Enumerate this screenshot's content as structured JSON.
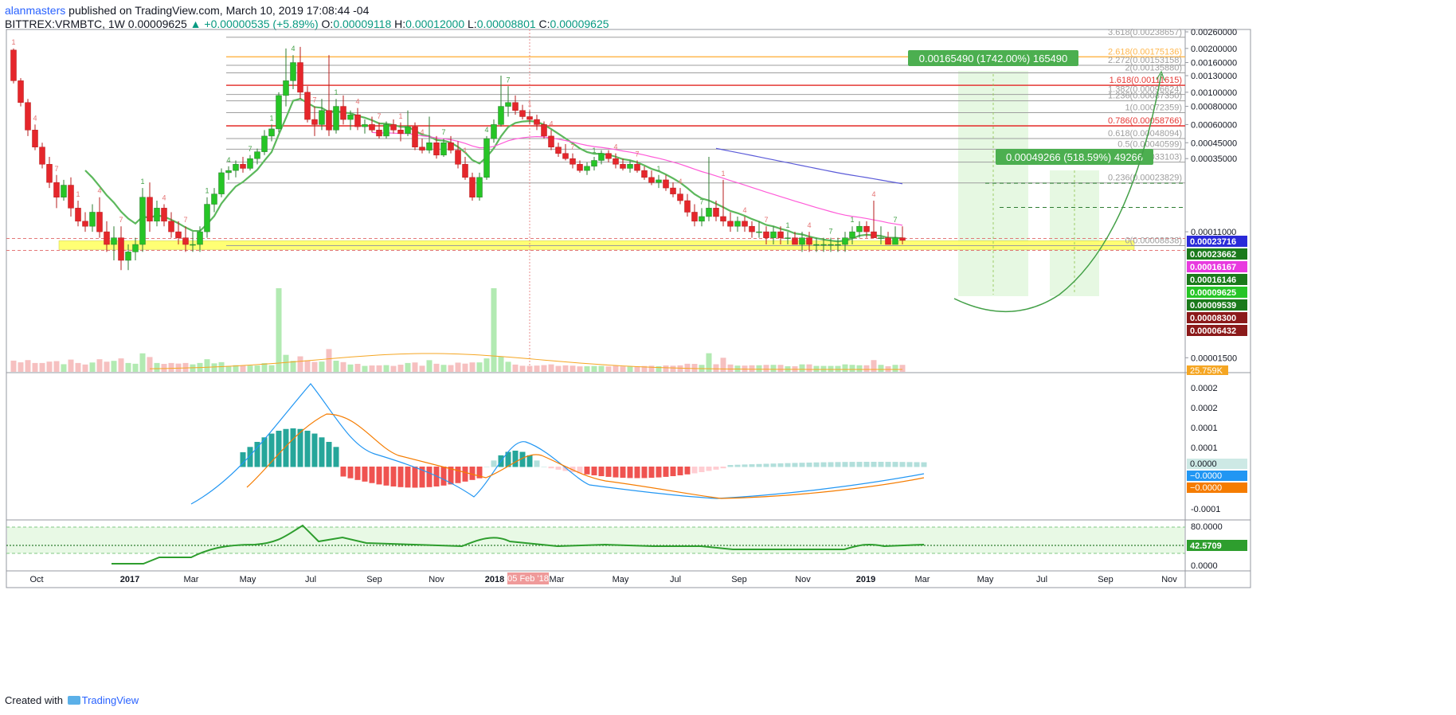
{
  "header": {
    "author": "alanmasters",
    "published_text": "published on TradingView.com, March 10, 2019 17:08:44 -04",
    "symbol": "BITTREX:VRMBTC, 1W",
    "last": "0.00009625",
    "change_arrow": "▲",
    "change": "+0.00000535 (+5.89%)",
    "o_label": "O:",
    "o": "0.00009118",
    "h_label": "H:",
    "h": "0.00012000",
    "l_label": "L:",
    "l": "0.00008801",
    "c_label": "C:",
    "c": "0.00009625"
  },
  "footer": {
    "created": "Created with",
    "brand": "TradingView"
  },
  "colors": {
    "up": "#26c526",
    "down": "#e5262b",
    "ema": "#5cb85c",
    "ma_pink": "#ff5bd8",
    "ma_blue": "#5b5bd8",
    "fib_red": "#e53935",
    "fib_orange": "#ffb74d",
    "fib_grey": "#9e9e9e",
    "zone": "#ffff66"
  },
  "chart_data": [
    {
      "type": "candlestick",
      "scale": "log",
      "x_ticks": [
        "Oct",
        "2017",
        "Mar",
        "May",
        "Jul",
        "Sep",
        "Nov",
        "2018",
        "Mar",
        "May",
        "Jul",
        "Sep",
        "Nov",
        "2019",
        "Mar",
        "May",
        "Jul",
        "Sep",
        "Nov"
      ],
      "crosshair_date": "05 Feb '18",
      "y_ticks": [
        "0.00260000",
        "0.00200000",
        "0.00160000",
        "0.00130000",
        "0.00100000",
        "0.00080000",
        "0.00060000",
        "0.00045000",
        "0.00035000",
        "0.00011000",
        "0.00001500"
      ],
      "price_tags": [
        {
          "text": "0.00023716",
          "color": "#2a2ad8",
          "value": 0.00023716
        },
        {
          "text": "0.00023662",
          "color": "#1b7a1b",
          "value": 0.00023662
        },
        {
          "text": "0.00016167",
          "color": "#e83adf",
          "value": 0.00016167
        },
        {
          "text": "0.00016146",
          "color": "#1b7a1b",
          "value": 0.00016146
        },
        {
          "text": "0.00009625",
          "color": "#26c526",
          "value": 9.625e-05
        },
        {
          "text": "0.00009539",
          "color": "#1b7a1b",
          "value": 9.539e-05
        },
        {
          "text": "0.00008300",
          "color": "#8b1a1a",
          "value": 8.3e-05
        },
        {
          "text": "0.00006432",
          "color": "#8b1a1a",
          "value": 6.432e-05
        }
      ],
      "volume_tag": "25.759K",
      "fib_levels": [
        {
          "label": "3.618(0.00238657)",
          "value": 0.00238657,
          "color": "#9e9e9e"
        },
        {
          "label": "2.618(0.00175136)",
          "value": 0.00175136,
          "color": "#ffb74d"
        },
        {
          "label": "2.272(0.00153158)",
          "value": 0.00153158,
          "color": "#9e9e9e"
        },
        {
          "label": "2(0.00135880)",
          "value": 0.0013588,
          "color": "#9e9e9e"
        },
        {
          "label": "1.618(0.00111615)",
          "value": 0.00111615,
          "color": "#e53935"
        },
        {
          "label": "1.382(0.00096624)",
          "value": 0.00096624,
          "color": "#9e9e9e"
        },
        {
          "label": "1.236(0.00087350)",
          "value": 0.0008735,
          "color": "#9e9e9e"
        },
        {
          "label": "1(0.00072359)",
          "value": 0.00072359,
          "color": "#9e9e9e"
        },
        {
          "label": "0.786(0.00058766)",
          "value": 0.00058766,
          "color": "#e53935"
        },
        {
          "label": "0.618(0.00048094)",
          "value": 0.00048094,
          "color": "#9e9e9e"
        },
        {
          "label": "0.5(0.00040599)",
          "value": 0.00040599,
          "color": "#9e9e9e"
        },
        {
          "label": "0.382(0.00033103)",
          "value": 0.00033103,
          "color": "#9e9e9e"
        },
        {
          "label": "0.236(0.00023829)",
          "value": 0.00023829,
          "color": "#9e9e9e"
        },
        {
          "label": "0(0.00008838)",
          "value": 8.838e-05,
          "color": "#9e9e9e"
        }
      ],
      "targets": [
        {
          "label": "0.00165490 (1742.00%) 165490",
          "value": 0.0016549
        },
        {
          "label": "0.00049266 (518.59%) 49266",
          "value": 0.00049266
        }
      ],
      "support_zone": [
        8.3e-05,
        9.539e-05
      ],
      "weeks_total": 136,
      "candles": [
        [
          0.00195,
          0.002,
          0.00115,
          0.0012
        ],
        [
          0.0012,
          0.00125,
          0.0008,
          0.00085
        ],
        [
          0.00085,
          0.0009,
          0.0005,
          0.00055
        ],
        [
          0.00055,
          0.0006,
          0.0004,
          0.00042
        ],
        [
          0.00042,
          0.00045,
          0.0003,
          0.00032
        ],
        [
          0.00032,
          0.00036,
          0.00022,
          0.00024
        ],
        [
          0.00024,
          0.00027,
          0.00016,
          0.00019
        ],
        [
          0.00019,
          0.00025,
          0.00018,
          0.00023
        ],
        [
          0.00023,
          0.00026,
          0.00014,
          0.00016
        ],
        [
          0.00016,
          0.00018,
          0.00012,
          0.00013
        ],
        [
          0.00013,
          0.00015,
          0.00011,
          0.00012
        ],
        [
          0.00012,
          0.00017,
          0.00011,
          0.00015
        ],
        [
          0.00015,
          0.00019,
          0.0001,
          0.00011
        ],
        [
          0.00011,
          0.00013,
          8e-05,
          9e-05
        ],
        [
          9e-05,
          0.00012,
          7e-05,
          0.0001
        ],
        [
          0.0001,
          0.00012,
          6e-05,
          7e-05
        ],
        [
          7e-05,
          9e-05,
          6e-05,
          8e-05
        ],
        [
          8e-05,
          0.0001,
          7e-05,
          9e-05
        ],
        [
          9e-05,
          0.00022,
          8e-05,
          0.00019
        ],
        [
          0.00019,
          0.00024,
          0.00011,
          0.00013
        ],
        [
          0.00013,
          0.00018,
          0.00012,
          0.00016
        ],
        [
          0.00016,
          0.00017,
          0.00012,
          0.00013
        ],
        [
          0.00013,
          0.00015,
          0.0001,
          0.00011
        ],
        [
          0.00011,
          0.00013,
          9e-05,
          0.0001
        ],
        [
          0.0001,
          0.00012,
          8e-05,
          9e-05
        ],
        [
          9e-05,
          0.00011,
          8e-05,
          9e-05
        ],
        [
          9e-05,
          0.00012,
          8e-05,
          0.00011
        ],
        [
          0.00011,
          0.00019,
          0.0001,
          0.00017
        ],
        [
          0.00017,
          0.00022,
          0.00015,
          0.0002
        ],
        [
          0.0002,
          0.0003,
          0.00019,
          0.00028
        ],
        [
          0.00028,
          0.00031,
          0.00025,
          0.00029
        ],
        [
          0.00029,
          0.00034,
          0.00026,
          0.00032
        ],
        [
          0.00032,
          0.00036,
          0.00028,
          0.0003
        ],
        [
          0.0003,
          0.00037,
          0.00029,
          0.00035
        ],
        [
          0.00035,
          0.00041,
          0.00032,
          0.00039
        ],
        [
          0.00039,
          0.00055,
          0.00037,
          0.0005
        ],
        [
          0.0005,
          0.0006,
          0.00046,
          0.00056
        ],
        [
          0.00056,
          0.001,
          0.00053,
          0.00095
        ],
        [
          0.00095,
          0.002,
          0.0008,
          0.0012
        ],
        [
          0.0012,
          0.0018,
          0.00105,
          0.0016
        ],
        [
          0.0016,
          0.00205,
          0.0009,
          0.001
        ],
        [
          0.001,
          0.0011,
          0.00062,
          0.00065
        ],
        [
          0.00065,
          0.0008,
          0.0005,
          0.0006
        ],
        [
          0.0006,
          0.0009,
          0.00055,
          0.00075
        ],
        [
          0.00075,
          0.0018,
          0.0005,
          0.00055
        ],
        [
          0.00055,
          0.0009,
          0.00052,
          0.0008
        ],
        [
          0.0008,
          0.00095,
          0.0006,
          0.00065
        ],
        [
          0.00065,
          0.00075,
          0.00055,
          0.0007
        ],
        [
          0.0007,
          0.00078,
          0.00055,
          0.00058
        ],
        [
          0.00058,
          0.00065,
          0.00052,
          0.0006
        ],
        [
          0.0006,
          0.00068,
          0.00053,
          0.00055
        ],
        [
          0.00055,
          0.00062,
          0.00048,
          0.0005
        ],
        [
          0.0005,
          0.00063,
          0.00048,
          0.0006
        ],
        [
          0.0006,
          0.00065,
          0.00052,
          0.00055
        ],
        [
          0.00055,
          0.00062,
          0.00046,
          0.00052
        ],
        [
          0.00052,
          0.00075,
          0.0005,
          0.00058
        ],
        [
          0.00058,
          0.00062,
          0.0004,
          0.00042
        ],
        [
          0.00042,
          0.00048,
          0.00038,
          0.0004
        ],
        [
          0.0004,
          0.00068,
          0.00038,
          0.00045
        ],
        [
          0.00045,
          0.0005,
          0.00035,
          0.00037
        ],
        [
          0.00037,
          0.00048,
          0.00036,
          0.00045
        ],
        [
          0.00045,
          0.0005,
          0.00038,
          0.0004
        ],
        [
          0.0004,
          0.00046,
          0.0003,
          0.00032
        ],
        [
          0.00032,
          0.00036,
          0.00025,
          0.00026
        ],
        [
          0.00026,
          0.00028,
          0.00018,
          0.00019
        ],
        [
          0.00019,
          0.00028,
          0.00018,
          0.00026
        ],
        [
          0.00026,
          0.0005,
          0.00025,
          0.00048
        ],
        [
          0.00048,
          0.00065,
          0.00045,
          0.0006
        ],
        [
          0.0006,
          0.0013,
          0.00058,
          0.0008
        ],
        [
          0.0008,
          0.0011,
          0.00068,
          0.00085
        ],
        [
          0.00085,
          0.00095,
          0.0007,
          0.00075
        ],
        [
          0.00075,
          0.00082,
          0.00065,
          0.00068
        ],
        [
          0.00068,
          0.00075,
          0.0006,
          0.00065
        ],
        [
          0.00065,
          0.0007,
          0.00055,
          0.0006
        ],
        [
          0.0006,
          0.00063,
          0.00048,
          0.0005
        ],
        [
          0.0005,
          0.00055,
          0.0004,
          0.00042
        ],
        [
          0.00042,
          0.00045,
          0.00036,
          0.00038
        ],
        [
          0.00038,
          0.00044,
          0.00034,
          0.00035
        ],
        [
          0.00035,
          0.00038,
          0.0003,
          0.00032
        ],
        [
          0.00032,
          0.00034,
          0.00028,
          0.00029
        ],
        [
          0.00029,
          0.00033,
          0.00027,
          0.00031
        ],
        [
          0.00031,
          0.00036,
          0.00029,
          0.00034
        ],
        [
          0.00034,
          0.0004,
          0.00032,
          0.00038
        ],
        [
          0.00038,
          0.0004,
          0.00033,
          0.00035
        ],
        [
          0.00035,
          0.00038,
          0.0003,
          0.00032
        ],
        [
          0.00032,
          0.00035,
          0.00029,
          0.0003
        ],
        [
          0.0003,
          0.00034,
          0.00028,
          0.00032
        ],
        [
          0.00032,
          0.00034,
          0.00028,
          0.00029
        ],
        [
          0.00029,
          0.00031,
          0.00025,
          0.00026
        ],
        [
          0.00026,
          0.00029,
          0.00023,
          0.00024
        ],
        [
          0.00024,
          0.00027,
          0.00022,
          0.00025
        ],
        [
          0.00025,
          0.00027,
          0.00021,
          0.00022
        ],
        [
          0.00022,
          0.00024,
          0.00019,
          0.0002
        ],
        [
          0.0002,
          0.00022,
          0.00017,
          0.00018
        ],
        [
          0.00018,
          0.0002,
          0.00014,
          0.00015
        ],
        [
          0.00015,
          0.00017,
          0.00012,
          0.00013
        ],
        [
          0.00013,
          0.00016,
          0.00012,
          0.00014
        ],
        [
          0.00014,
          0.00036,
          0.00013,
          0.00016
        ],
        [
          0.00016,
          0.00018,
          0.00013,
          0.00014
        ],
        [
          0.00014,
          0.00025,
          0.00012,
          0.00013
        ],
        [
          0.00013,
          0.00015,
          0.00011,
          0.00012
        ],
        [
          0.00012,
          0.00014,
          0.00011,
          0.00013
        ],
        [
          0.00013,
          0.00014,
          0.00011,
          0.00012
        ],
        [
          0.00012,
          0.00013,
          0.0001,
          0.00011
        ],
        [
          0.00011,
          0.00013,
          0.0001,
          0.00011
        ],
        [
          0.00011,
          0.00012,
          9e-05,
          0.0001
        ],
        [
          0.0001,
          0.00012,
          9e-05,
          0.00011
        ],
        [
          0.00011,
          0.00012,
          9e-05,
          0.0001
        ],
        [
          0.0001,
          0.00011,
          9e-05,
          0.0001
        ],
        [
          0.0001,
          0.00011,
          9e-05,
          9e-05
        ],
        [
          9e-05,
          0.00011,
          8e-05,
          0.0001
        ],
        [
          0.0001,
          0.00011,
          8e-05,
          9e-05
        ],
        [
          9e-05,
          0.0001,
          8e-05,
          9e-05
        ],
        [
          9e-05,
          0.0001,
          8e-05,
          9e-05
        ],
        [
          9e-05,
          0.0001,
          8e-05,
          9e-05
        ],
        [
          9e-05,
          0.0001,
          8e-05,
          9e-05
        ],
        [
          9e-05,
          0.00011,
          8e-05,
          0.0001
        ],
        [
          0.0001,
          0.00012,
          9e-05,
          0.00011
        ],
        [
          0.00011,
          0.00013,
          0.0001,
          0.00012
        ],
        [
          0.00012,
          0.00013,
          0.0001,
          0.00011
        ],
        [
          0.00011,
          0.00018,
          0.0001,
          0.0001
        ],
        [
          0.0001,
          0.00012,
          9e-05,
          0.0001
        ],
        [
          0.0001,
          0.00011,
          9e-05,
          9e-05
        ],
        [
          9e-05,
          0.00012,
          9e-05,
          0.0001
        ],
        [
          0.0001,
          0.00012,
          9e-05,
          9.6e-05
        ]
      ]
    },
    {
      "type": "macd",
      "y_ticks": [
        "0.0002",
        "0.0002",
        "0.0001",
        "0.0001",
        "0.0000",
        "-0.0001"
      ],
      "tags": [
        {
          "text": "0.0000",
          "color": "#cde9e5"
        },
        {
          "text": "−0.0000",
          "color": "#2196f3"
        },
        {
          "text": "−0.0000",
          "color": "#f57c00"
        }
      ]
    },
    {
      "type": "rsi",
      "y_ticks": [
        "80.0000",
        "0.0000"
      ],
      "tag": "42.5709"
    }
  ]
}
